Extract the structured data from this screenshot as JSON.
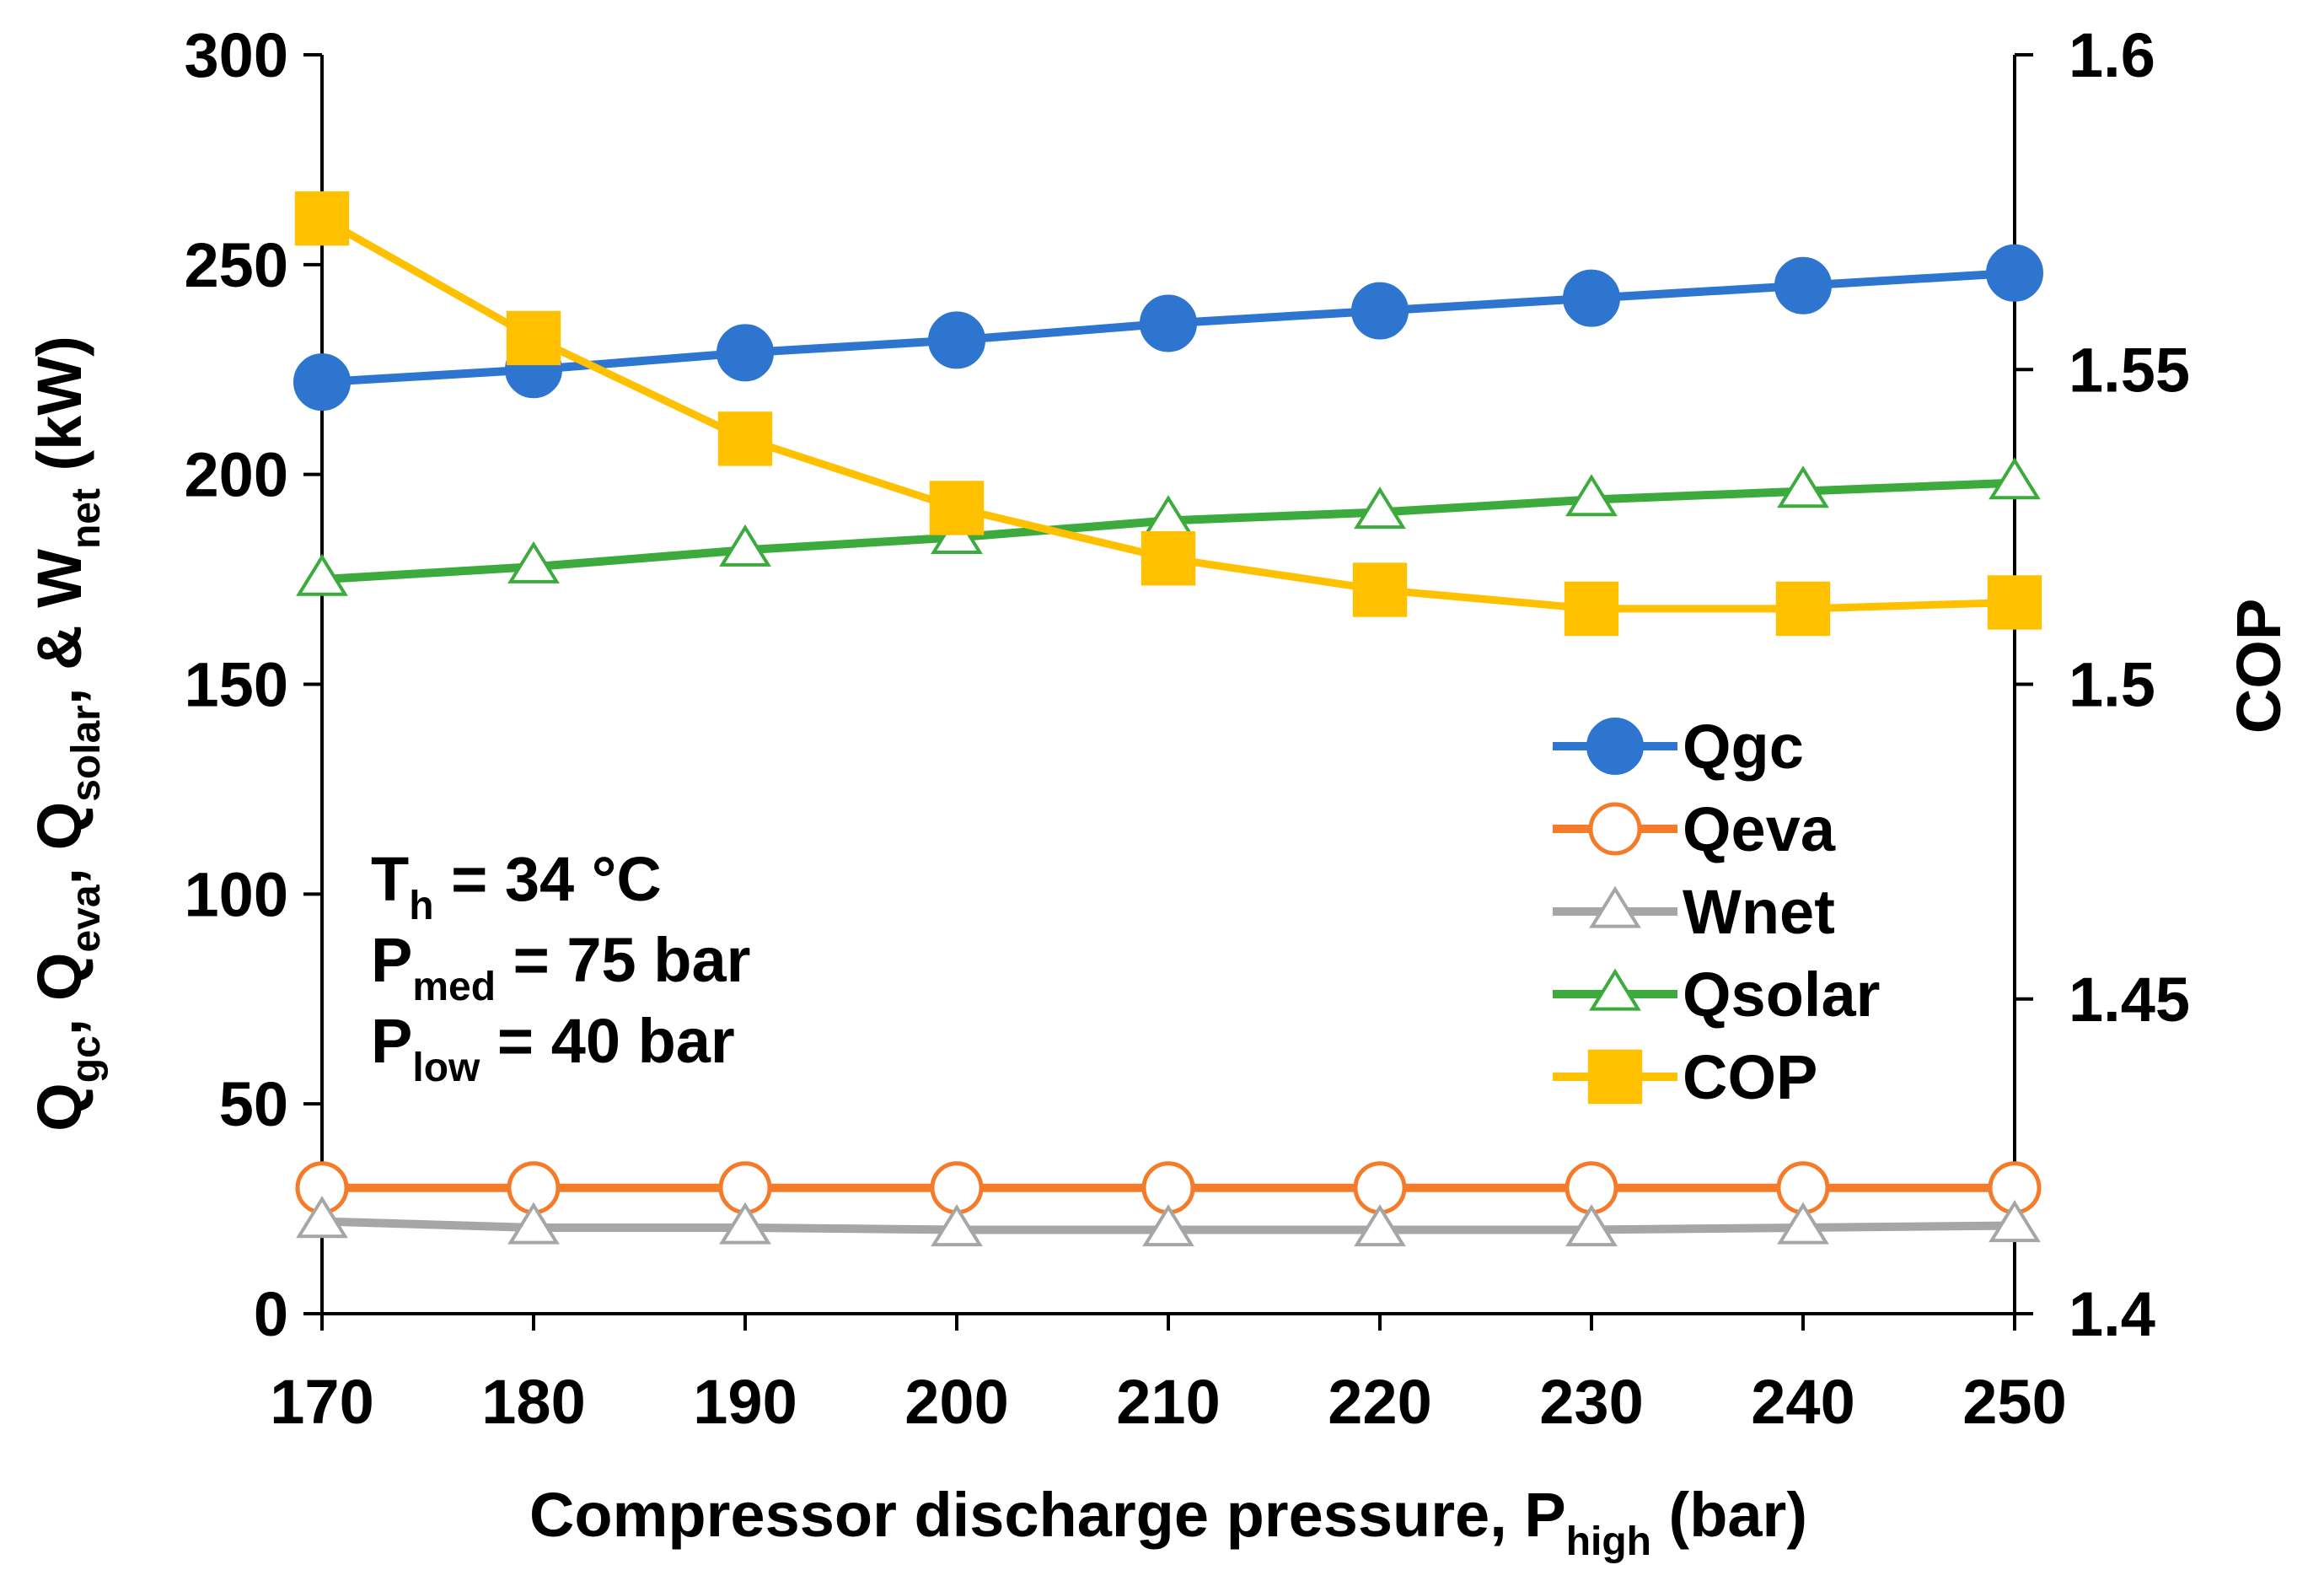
{
  "chart_data": {
    "type": "line",
    "x": [
      170,
      180,
      190,
      200,
      210,
      220,
      230,
      240,
      250
    ],
    "xlim": [
      170,
      250
    ],
    "ylim_left": [
      0,
      300
    ],
    "ylim_right": [
      1.4,
      1.6
    ],
    "x_ticks": [
      "170",
      "180",
      "190",
      "200",
      "210",
      "220",
      "230",
      "240",
      "250"
    ],
    "y_left_ticks": [
      "0",
      "50",
      "100",
      "150",
      "200",
      "250",
      "300"
    ],
    "y_right_ticks": [
      "1.4",
      "1.45",
      "1.5",
      "1.55",
      "1.6"
    ],
    "xlabel": {
      "main": "Compressor discharge pressure, P",
      "sub": "high",
      "tail": " (bar)"
    },
    "ylabel_left": [
      {
        "main": "Q",
        "sub": "gc",
        "tail": ", "
      },
      {
        "main": "Q",
        "sub": "eva",
        "tail": ", "
      },
      {
        "main": "Q",
        "sub": "solar",
        "tail": ", & "
      },
      {
        "main": "W",
        "sub": "net",
        "tail": " (kW)"
      }
    ],
    "ylabel_right": "COP",
    "grid": false,
    "legend_position": "right-middle",
    "series": [
      {
        "name": "Qgc",
        "axis": "left",
        "color": "#2E75D0",
        "marker": "circle-filled",
        "values": [
          222,
          225,
          229,
          232,
          236,
          239,
          242,
          245,
          248
        ]
      },
      {
        "name": "Qeva",
        "axis": "left",
        "color": "#F47B2A",
        "marker": "circle-open",
        "values": [
          30,
          30,
          30,
          30,
          30,
          30,
          30,
          30,
          30
        ]
      },
      {
        "name": "Wnet",
        "axis": "left",
        "color": "#A6A6A6",
        "marker": "triangle-open",
        "values": [
          22,
          20.5,
          20.5,
          20,
          20,
          20,
          20,
          20.5,
          21
        ]
      },
      {
        "name": "Qsolar",
        "axis": "left",
        "color": "#3CAA3C",
        "marker": "triangle-open",
        "values": [
          175,
          178,
          182,
          185,
          189,
          191,
          194,
          196,
          198
        ]
      },
      {
        "name": "COP",
        "axis": "right",
        "color": "#FFC000",
        "marker": "square-filled",
        "values": [
          1.574,
          1.555,
          1.539,
          1.528,
          1.52,
          1.515,
          1.512,
          1.512,
          1.513
        ]
      }
    ],
    "annotations": [
      {
        "main": "T",
        "sub": "h",
        "tail": " = 34 °C"
      },
      {
        "main": "P",
        "sub": "med",
        "tail": " = 75 bar"
      },
      {
        "main": "P",
        "sub": "low",
        "tail": " = 40 bar"
      }
    ]
  }
}
